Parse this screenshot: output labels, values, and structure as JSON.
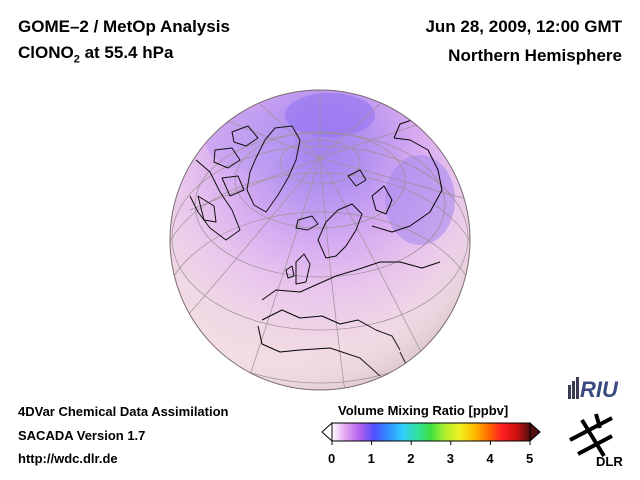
{
  "header": {
    "title_line1": "GOME–2 / MetOp Analysis",
    "title_species": "ClONO",
    "title_subscript": "2",
    "title_level": " at 55.4 hPa",
    "date": "Jun 28, 2009, 12:00 GMT",
    "region": "Northern Hemisphere"
  },
  "footer": {
    "line1": "4DVar Chemical Data Assimilation",
    "line2": "SACADA Version 1.7",
    "line3": "http://wdc.dlr.de"
  },
  "colorbar": {
    "title": "Volume Mixing Ratio [ppbv]",
    "min": 0,
    "max": 5,
    "ticks": [
      "0",
      "1",
      "2",
      "3",
      "4",
      "5"
    ],
    "colors": [
      "#ffffff",
      "#e0a0f0",
      "#b060f0",
      "#5050ff",
      "#3090ff",
      "#30d0ff",
      "#30e0a0",
      "#40e040",
      "#b0f030",
      "#f0f020",
      "#ffc000",
      "#ff7000",
      "#ff2020",
      "#d01010",
      "#501010"
    ]
  },
  "map": {
    "projection": "orthographic",
    "field_colors": {
      "ocean_background": "#f2dce0",
      "mid_latitude": "#e8c8e8",
      "high_latitude": "#d8a8f0",
      "polar_maximum": "#9070f0"
    }
  },
  "logos": {
    "riu": "RIU",
    "dlr": "DLR"
  }
}
